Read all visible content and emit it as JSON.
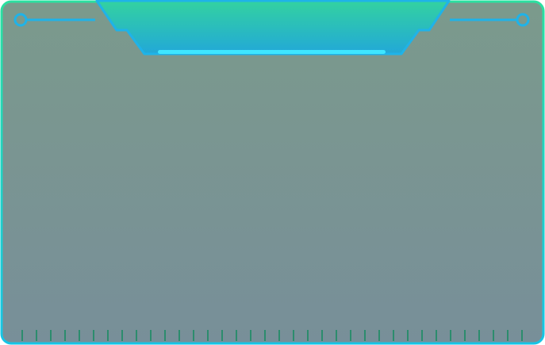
{
  "panel": {
    "colors": {
      "bg_top": "#7b9a8c",
      "bg_bottom": "#788f99",
      "border_top": "#2be0a0",
      "border_bottom": "#16c4e6",
      "header_top": "#33d2a0",
      "header_bottom": "#22a8d8",
      "accent": "#1fb3e8",
      "highlight": "#3fe6ff",
      "tick": "#138a5e"
    },
    "icons": [
      "left-connector-icon",
      "right-connector-icon"
    ],
    "bottom_tick_count": 36
  }
}
